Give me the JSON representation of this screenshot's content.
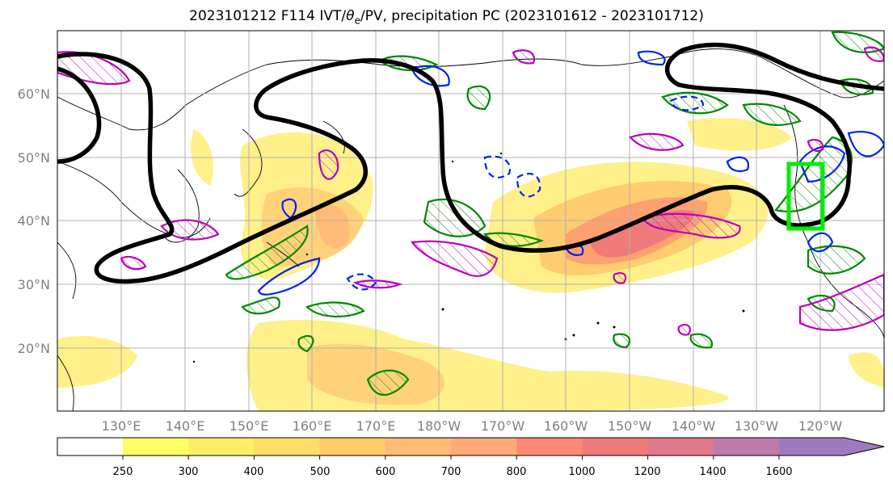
{
  "title": {
    "prefix": "2023101212 F114 IVT/",
    "theta": "θ",
    "sub": "e",
    "suffix": "/PV, precipitation PC (2023101612 - 2023101712)"
  },
  "lat_labels": [
    "60°N",
    "50°N",
    "40°N",
    "30°N",
    "20°N"
  ],
  "lon_labels": [
    "130°E",
    "140°E",
    "150°E",
    "160°E",
    "170°E",
    "180°W",
    "170°W",
    "160°W",
    "150°W",
    "140°W",
    "130°W",
    "120°W"
  ],
  "colorbar": {
    "levels": [
      "250",
      "300",
      "400",
      "500",
      "600",
      "700",
      "800",
      "1000",
      "1200",
      "1400",
      "1600"
    ],
    "colors": [
      "#ffff66",
      "#ffee66",
      "#ffdd66",
      "#ffcc66",
      "#ffbb77",
      "#ffaa77",
      "#ff8877",
      "#f07a7a",
      "#e07a8a",
      "#c07aaa",
      "#a07ac0"
    ]
  },
  "colors": {
    "ivt_contour": "#000000",
    "theta_pos": "#008800",
    "theta_neg": "#0022ee",
    "pv": "#bb00bb",
    "box": "#00ee00",
    "coast": "#000000",
    "grid": "#b0b0b0"
  }
}
